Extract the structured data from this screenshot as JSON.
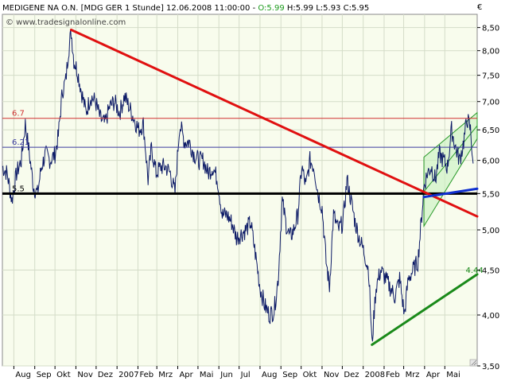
{
  "header": {
    "instrument": "MEDIGENE NA O.N. [MDG GER  1 Stunde] 12.06.2008 11:00:00 - ",
    "open": "O:5.99",
    "hlc": " H:5.99 L:5.93 C:5.95",
    "currency": "€",
    "watermark": "© www.tradesignalonline.com"
  },
  "colors": {
    "background": "#ffffff",
    "plot_area": "#f8fced",
    "grid": "#d4dcc8",
    "price": "#0c1a66",
    "trendline_red": "#e01010",
    "support_black": "#000000",
    "trend_green": "#1a8a1a",
    "channel_fill": "#c8f0c0",
    "channel_stroke": "#2a9a2a",
    "level_red": "#d03030",
    "level_blue": "#3a3aa0",
    "blue_segment": "#1030d0"
  },
  "chart_data": {
    "type": "line",
    "title": "MEDIGENE NA O.N. [MDG GER  1 Stunde] 12.06.2008 11:00:00 - O:5.99 H:5.99 L:5.93 C:5.95",
    "xlabel": "",
    "ylabel": "",
    "y_scale": "log",
    "ylim": [
      3.5,
      8.8
    ],
    "grid": true,
    "y_ticks": [
      "8,50",
      "8,00",
      "7,50",
      "7,00",
      "6,50",
      "6,00",
      "5,50",
      "5,00",
      "4,50",
      "4,00",
      "3,50"
    ],
    "y_tick_values": [
      8.5,
      8.0,
      7.5,
      7.0,
      6.5,
      6.0,
      5.5,
      5.0,
      4.5,
      4.0,
      3.5
    ],
    "x_range": [
      "2006-07-15",
      "2008-06-18"
    ],
    "x_ticks": [
      {
        "label": "Aug",
        "date": "2006-08-01"
      },
      {
        "label": "Sep",
        "date": "2006-09-01"
      },
      {
        "label": "Okt",
        "date": "2006-10-01"
      },
      {
        "label": "Nov",
        "date": "2006-11-01"
      },
      {
        "label": "Dez",
        "date": "2006-12-01"
      },
      {
        "label": "2007",
        "date": "2007-01-01"
      },
      {
        "label": "Feb",
        "date": "2007-02-01"
      },
      {
        "label": "Mrz",
        "date": "2007-03-01"
      },
      {
        "label": "Apr",
        "date": "2007-04-01"
      },
      {
        "label": "Mai",
        "date": "2007-05-01"
      },
      {
        "label": "Jun",
        "date": "2007-06-01"
      },
      {
        "label": "Jul",
        "date": "2007-07-01"
      },
      {
        "label": "Aug",
        "date": "2007-08-01"
      },
      {
        "label": "Sep",
        "date": "2007-09-01"
      },
      {
        "label": "Okt",
        "date": "2007-10-01"
      },
      {
        "label": "Nov",
        "date": "2007-11-01"
      },
      {
        "label": "Dez",
        "date": "2007-12-01"
      },
      {
        "label": "2008",
        "date": "2008-01-01"
      },
      {
        "label": "Feb",
        "date": "2008-02-01"
      },
      {
        "label": "Mrz",
        "date": "2008-03-01"
      },
      {
        "label": "Apr",
        "date": "2008-04-01"
      },
      {
        "label": "Mai",
        "date": "2008-05-01"
      }
    ],
    "price_series": [
      [
        "2006-07-15",
        5.9
      ],
      [
        "2006-07-22",
        5.8
      ],
      [
        "2006-07-29",
        5.4
      ],
      [
        "2006-08-05",
        5.8
      ],
      [
        "2006-08-12",
        6.0
      ],
      [
        "2006-08-18",
        6.6
      ],
      [
        "2006-08-24",
        6.1
      ],
      [
        "2006-08-30",
        5.6
      ],
      [
        "2006-09-05",
        5.5
      ],
      [
        "2006-09-11",
        5.9
      ],
      [
        "2006-09-17",
        6.1
      ],
      [
        "2006-09-24",
        6.0
      ],
      [
        "2006-10-01",
        6.1
      ],
      [
        "2006-10-06",
        6.4
      ],
      [
        "2006-10-12",
        7.2
      ],
      [
        "2006-10-17",
        7.4
      ],
      [
        "2006-10-21",
        8.0
      ],
      [
        "2006-10-25",
        8.4
      ],
      [
        "2006-10-29",
        7.8
      ],
      [
        "2006-11-03",
        7.6
      ],
      [
        "2006-11-09",
        7.2
      ],
      [
        "2006-11-16",
        6.8
      ],
      [
        "2006-11-23",
        7.1
      ],
      [
        "2006-11-30",
        7.0
      ],
      [
        "2006-12-07",
        6.7
      ],
      [
        "2006-12-14",
        6.6
      ],
      [
        "2006-12-21",
        6.9
      ],
      [
        "2006-12-28",
        7.0
      ],
      [
        "2007-01-05",
        6.8
      ],
      [
        "2007-01-12",
        7.1
      ],
      [
        "2007-01-19",
        6.9
      ],
      [
        "2007-01-26",
        6.7
      ],
      [
        "2007-02-02",
        6.5
      ],
      [
        "2007-02-09",
        6.6
      ],
      [
        "2007-02-16",
        5.7
      ],
      [
        "2007-02-21",
        6.2
      ],
      [
        "2007-02-28",
        5.8
      ],
      [
        "2007-03-07",
        5.9
      ],
      [
        "2007-03-14",
        5.9
      ],
      [
        "2007-03-21",
        5.8
      ],
      [
        "2007-03-28",
        5.5
      ],
      [
        "2007-04-04",
        6.6
      ],
      [
        "2007-04-11",
        6.3
      ],
      [
        "2007-04-18",
        6.3
      ],
      [
        "2007-04-25",
        6.1
      ],
      [
        "2007-05-02",
        6.0
      ],
      [
        "2007-05-09",
        6.0
      ],
      [
        "2007-05-16",
        5.8
      ],
      [
        "2007-05-23",
        5.9
      ],
      [
        "2007-05-30",
        5.7
      ],
      [
        "2007-06-06",
        5.2
      ],
      [
        "2007-06-13",
        5.2
      ],
      [
        "2007-06-20",
        5.1
      ],
      [
        "2007-06-27",
        4.9
      ],
      [
        "2007-07-04",
        4.95
      ],
      [
        "2007-07-11",
        5.0
      ],
      [
        "2007-07-18",
        5.1
      ],
      [
        "2007-07-25",
        4.7
      ],
      [
        "2007-08-01",
        4.3
      ],
      [
        "2007-08-08",
        4.1
      ],
      [
        "2007-08-15",
        4.0
      ],
      [
        "2007-08-22",
        4.05
      ],
      [
        "2007-08-28",
        4.4
      ],
      [
        "2007-09-03",
        5.4
      ],
      [
        "2007-09-08",
        5.1
      ],
      [
        "2007-09-14",
        4.9
      ],
      [
        "2007-09-20",
        5.0
      ],
      [
        "2007-09-26",
        5.2
      ],
      [
        "2007-10-02",
        5.9
      ],
      [
        "2007-10-08",
        5.6
      ],
      [
        "2007-10-14",
        6.0
      ],
      [
        "2007-10-20",
        5.9
      ],
      [
        "2007-10-26",
        5.5
      ],
      [
        "2007-11-01",
        5.3
      ],
      [
        "2007-11-07",
        4.6
      ],
      [
        "2007-11-12",
        4.3
      ],
      [
        "2007-11-18",
        5.2
      ],
      [
        "2007-11-25",
        5.0
      ],
      [
        "2007-12-02",
        5.1
      ],
      [
        "2007-12-08",
        5.7
      ],
      [
        "2007-12-14",
        5.4
      ],
      [
        "2007-12-20",
        5.1
      ],
      [
        "2007-12-26",
        4.9
      ],
      [
        "2008-01-03",
        4.7
      ],
      [
        "2008-01-09",
        4.5
      ],
      [
        "2008-01-14",
        3.7
      ],
      [
        "2008-01-20",
        4.3
      ],
      [
        "2008-01-27",
        4.5
      ],
      [
        "2008-02-03",
        4.4
      ],
      [
        "2008-02-10",
        4.3
      ],
      [
        "2008-02-17",
        4.2
      ],
      [
        "2008-02-24",
        4.4
      ],
      [
        "2008-03-02",
        4.0
      ],
      [
        "2008-03-08",
        4.4
      ],
      [
        "2008-03-15",
        4.5
      ],
      [
        "2008-03-22",
        4.6
      ],
      [
        "2008-03-27",
        5.1
      ],
      [
        "2008-03-31",
        5.6
      ],
      [
        "2008-04-05",
        5.8
      ],
      [
        "2008-04-11",
        5.9
      ],
      [
        "2008-04-17",
        5.7
      ],
      [
        "2008-04-23",
        6.1
      ],
      [
        "2008-04-29",
        6.0
      ],
      [
        "2008-05-05",
        5.9
      ],
      [
        "2008-05-11",
        6.5
      ],
      [
        "2008-05-17",
        6.2
      ],
      [
        "2008-05-23",
        6.0
      ],
      [
        "2008-05-29",
        6.3
      ],
      [
        "2008-06-03",
        6.7
      ],
      [
        "2008-06-08",
        6.5
      ],
      [
        "2008-06-12",
        5.95
      ]
    ],
    "horizontal_levels": [
      {
        "label": "6.7",
        "value": 6.7,
        "color": "#d03030"
      },
      {
        "label": "6.21",
        "value": 6.21,
        "color": "#3a3aa0"
      },
      {
        "label": "5.5",
        "value": 5.5,
        "color": "#000000"
      }
    ],
    "trend_lines": [
      {
        "from": [
          "2006-10-25",
          8.45
        ],
        "to": [
          "2008-06-18",
          5.18
        ],
        "color": "#e01010"
      },
      {
        "from": [
          "2008-01-14",
          3.7
        ],
        "to": [
          "2008-06-18",
          4.45
        ],
        "color": "#1a8a1a"
      },
      {
        "from": [
          "2008-03-31",
          5.45
        ],
        "to": [
          "2008-06-18",
          5.57
        ],
        "color": "#1030d0"
      }
    ],
    "trend_labels": [
      {
        "text": "4.44",
        "at": [
          "2008-06-08",
          4.44
        ],
        "color": "#1a8a1a"
      }
    ],
    "channel": {
      "lower_from": [
        "2008-03-31",
        5.05
      ],
      "lower_to": [
        "2008-06-18",
        6.35
      ],
      "upper_from": [
        "2008-03-31",
        6.05
      ],
      "upper_to": [
        "2008-06-18",
        6.8
      ]
    }
  }
}
